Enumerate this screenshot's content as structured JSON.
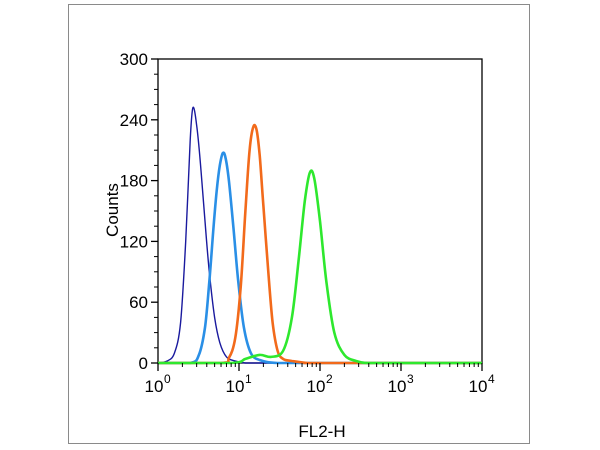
{
  "chart_data": {
    "type": "line",
    "title": "",
    "xlabel": "FL2-H",
    "ylabel": "Counts",
    "x_scale": "log",
    "xlim": [
      1,
      10000
    ],
    "ylim": [
      0,
      300
    ],
    "x_ticks": [
      {
        "value": 1,
        "base": "10",
        "exp": "0"
      },
      {
        "value": 10,
        "base": "10",
        "exp": "1"
      },
      {
        "value": 100,
        "base": "10",
        "exp": "2"
      },
      {
        "value": 1000,
        "base": "10",
        "exp": "3"
      },
      {
        "value": 10000,
        "base": "10",
        "exp": "4"
      }
    ],
    "y_ticks": [
      {
        "value": 0,
        "label": "0"
      },
      {
        "value": 60,
        "label": "60"
      },
      {
        "value": 120,
        "label": "120"
      },
      {
        "value": 180,
        "label": "180"
      },
      {
        "value": 240,
        "label": "240"
      },
      {
        "value": 300,
        "label": "300"
      }
    ],
    "grid": false,
    "legend": "none",
    "series": [
      {
        "color": "#1a1a9e",
        "x": [
          1.0,
          1.3,
          1.6,
          1.9,
          2.2,
          2.5,
          2.7,
          3.0,
          3.4,
          3.8,
          4.3,
          5.0,
          5.8,
          7.0,
          9.0,
          12,
          20,
          100,
          10000
        ],
        "y": [
          0,
          2,
          10,
          40,
          120,
          220,
          252,
          235,
          190,
          140,
          90,
          45,
          20,
          6,
          2,
          0,
          0,
          0,
          0
        ]
      },
      {
        "color": "#2a8fe6",
        "x": [
          1.0,
          2.5,
          3.2,
          3.8,
          4.3,
          4.8,
          5.3,
          5.8,
          6.3,
          6.8,
          7.5,
          8.5,
          9.8,
          11.5,
          14,
          18,
          30,
          100,
          10000
        ],
        "y": [
          0,
          0,
          8,
          35,
          80,
          130,
          170,
          195,
          207,
          203,
          180,
          135,
          80,
          35,
          10,
          3,
          0,
          0,
          0
        ]
      },
      {
        "color": "#f26a1b",
        "x": [
          1.0,
          6.0,
          7.5,
          9.0,
          10.5,
          12,
          13.5,
          15,
          16.5,
          18,
          20,
          23,
          26,
          30,
          35,
          45,
          70,
          100,
          10000
        ],
        "y": [
          0,
          0,
          5,
          25,
          75,
          150,
          210,
          233,
          230,
          205,
          155,
          90,
          40,
          12,
          4,
          2,
          0,
          0,
          0
        ]
      },
      {
        "color": "#2ee82e",
        "x": [
          1.0,
          8.0,
          12,
          18,
          25,
          35,
          45,
          55,
          65,
          75,
          85,
          100,
          120,
          150,
          200,
          280,
          400,
          1000,
          10000
        ],
        "y": [
          0,
          0,
          4,
          8,
          6,
          12,
          45,
          105,
          160,
          188,
          182,
          140,
          80,
          30,
          8,
          2,
          0,
          0,
          0
        ]
      }
    ]
  }
}
